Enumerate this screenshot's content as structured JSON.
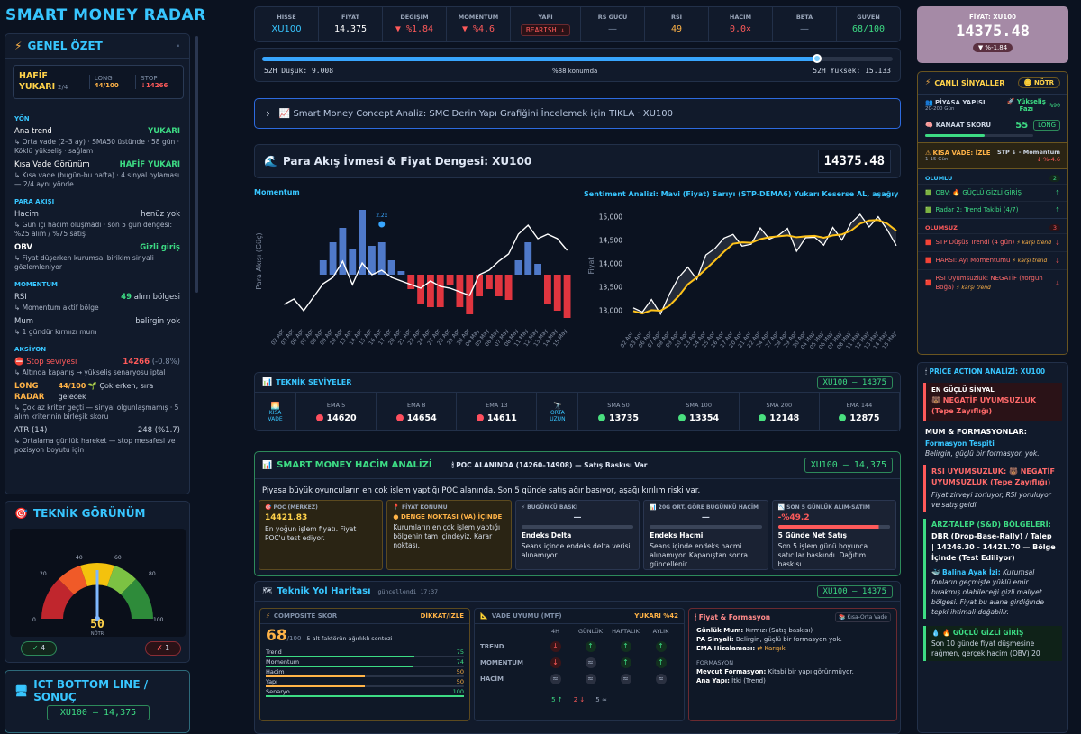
{
  "brand": "SMART MONEY RADAR",
  "summary": {
    "title": "GENEL ÖZET",
    "card": {
      "state": "HAFİF YUKARI",
      "count": "2/4",
      "long_label": "LONG",
      "long_val": "44/100",
      "stop_label": "STOP",
      "stop_val": "↓14266"
    },
    "yon_label": "YÖN",
    "ana_trend_label": "Ana trend",
    "ana_trend_val": "YUKARI",
    "ana_trend_sub": "↳ Orta vade (2–3 ay) · SMA50 üstünde · 58 gün · Köklü yükseliş · sağlam",
    "kisa_label": "Kısa Vade Görünüm",
    "kisa_val": "HAFİF YUKARI",
    "kisa_sub": "↳ Kısa vade (bugün-bu hafta) · 4 sinyal oylaması — 2/4 aynı yönde",
    "para_label": "PARA AKIŞI",
    "hacim_label": "Hacim",
    "hacim_val": "henüz yok",
    "hacim_sub": "↳ Gün içi hacim oluşmadı · son 5 gün dengesi: %25 alım / %75 satış",
    "obv_label": "OBV",
    "obv_val": "Gizli giriş",
    "obv_sub": "↳ Fiyat düşerken kurumsal birikim sinyali gözlemleniyor",
    "mom_label": "MOMENTUM",
    "rsi_label": "RSI",
    "rsi_val": "49",
    "rsi_val2": "alım bölgesi",
    "rsi_sub": "↳ Momentum aktif bölge",
    "mum_label": "Mum",
    "mum_val": "belirgin yok",
    "mum_sub": "↳ 1 gündür kırmızı mum",
    "aksiyon_label": "AKSİYON",
    "stop_label": "⛔ Stop seviyesi",
    "stop_val": "14266",
    "stop_pct": "(-0.8%)",
    "stop_sub": "↳ Altında kapanış → yükseliş senaryosu iptal",
    "long_radar_label": "LONG RADAR",
    "long_radar_val": "44/100",
    "long_radar_note": "🌱 Çok erken, sıra gelecek",
    "long_radar_sub": "↳ Çok az kriter geçti — sinyal olgunlaşmamış · 5 alım kriterinin birleşik skoru",
    "atr_label": "ATR (14)",
    "atr_val": "248 (%1.7)",
    "atr_sub": "↳ Ortalama günlük hareket — stop mesafesi ve pozisyon boyutu için"
  },
  "teknik": {
    "title": "TEKNİK GÖRÜNÜM",
    "ticks": [
      "0",
      "20",
      "40",
      "60",
      "80",
      "100"
    ],
    "value": "50",
    "state": "NÖTR",
    "up_count": "4",
    "down_count": "1",
    "gauge_level": 50
  },
  "ict": {
    "title": "ICT BOTTOM LINE / SONUÇ",
    "pill": "XU100 — 14,375"
  },
  "top_table": {
    "headers": [
      "HİSSE",
      "FİYAT",
      "DEĞİŞİM",
      "MOMENTUM",
      "YAPI",
      "RS GÜCÜ",
      "RSI",
      "HACİM",
      "BETA",
      "GÜVEN"
    ],
    "values": [
      "XU100",
      "14.375",
      "▼ %1.84",
      "▼ %4.6",
      "BEARISH ↓",
      "—",
      "49",
      "0.0×",
      "—",
      "68/100"
    ]
  },
  "range": {
    "low": "52H Düşük: 9.008",
    "mid": "%88 konumda",
    "high": "52H Yüksek: 15.133",
    "position": 0.88
  },
  "smc_bar": {
    "chevron": "›",
    "text": "📈 Smart Money Concept Analiz: SMC Derin Yapı Grafiğini İncelemek için TIKLA · XU100"
  },
  "flow": {
    "title": "Para Akış İvmesi & Fiyat Dengesi: XU100",
    "price": "14375.48",
    "left_label": "Momentum",
    "left_ylabel": "Para Akışı (Güç)",
    "marker": "2.2x",
    "right_label": "Sentiment Analizi: Mavi (Fiyat) Sarıyı (STP-DEMA6) Yukarı Keserse AL, aşağıya …",
    "right_ylabel": "Fiyat"
  },
  "chart_data": [
    {
      "type": "bar",
      "title": "Momentum",
      "ylabel": "Para Akışı (Güç)",
      "categories": [
        "02 Apr",
        "03 Apr",
        "06 Apr",
        "07 Apr",
        "08 Apr",
        "09 Apr",
        "10 Apr",
        "13 Apr",
        "14 Apr",
        "15 Apr",
        "16 Apr",
        "17 Apr",
        "20 Apr",
        "21 Apr",
        "22 Apr",
        "24 Apr",
        "27 Apr",
        "28 Apr",
        "29 Apr",
        "30 Apr",
        "04 May",
        "05 May",
        "06 May",
        "07 May",
        "08 May",
        "11 May",
        "12 May",
        "13 May",
        "14 May",
        "15 May"
      ],
      "values": [
        0,
        0,
        0,
        0,
        0.4,
        0.9,
        1.3,
        0.7,
        1.8,
        0.8,
        0.9,
        0.4,
        0.1,
        -0.4,
        -0.8,
        -0.9,
        -0.9,
        -0.3,
        -0.9,
        -1.1,
        -0.6,
        -0.4,
        -0.6,
        -0.7,
        0.4,
        0.9,
        0.3,
        -0.8,
        -1.0,
        -1.2
      ]
    },
    {
      "type": "line",
      "title": "Sentiment Analizi",
      "ylabel": "Fiyat",
      "ylim": [
        12700,
        15300
      ],
      "yticks": [
        13000,
        13500,
        14000,
        14500,
        15000
      ],
      "categories": [
        "02 Apr",
        "03 Apr",
        "06 Apr",
        "07 Apr",
        "08 Apr",
        "09 Apr",
        "10 Apr",
        "13 Apr",
        "14 Apr",
        "15 Apr",
        "16 Apr",
        "17 Apr",
        "20 Apr",
        "21 Apr",
        "22 Apr",
        "24 Apr",
        "27 Apr",
        "28 Apr",
        "29 Apr",
        "30 Apr",
        "04 May",
        "05 May",
        "06 May",
        "07 May",
        "08 May",
        "11 May",
        "12 May",
        "13 May",
        "14 May",
        "15 May"
      ],
      "series": [
        {
          "name": "Fiyat",
          "color": "#ffffff",
          "values": [
            13050,
            12960,
            13230,
            12920,
            13350,
            13700,
            13920,
            13660,
            14180,
            14320,
            14540,
            14620,
            14370,
            14410,
            14760,
            14520,
            14600,
            14750,
            14260,
            14550,
            14560,
            14390,
            14770,
            14500,
            14860,
            15050,
            14780,
            15000,
            14720,
            14380
          ]
        },
        {
          "name": "STP-DEMA6",
          "color": "#ffc31a",
          "values": [
            12980,
            12930,
            13000,
            12990,
            13100,
            13300,
            13550,
            13700,
            13880,
            14060,
            14250,
            14420,
            14450,
            14440,
            14520,
            14560,
            14580,
            14600,
            14560,
            14580,
            14590,
            14550,
            14600,
            14620,
            14700,
            14850,
            14920,
            14930,
            14850,
            14700
          ]
        }
      ]
    }
  ],
  "levels": {
    "title": "TEKNİK SEVİYELER",
    "pill": "XU100 — 14375",
    "kisa": "KISA VADE",
    "orta": "ORTA UZUN",
    "emas": [
      {
        "label": "EMA 5",
        "val": "14620",
        "color": "#ff4f5e"
      },
      {
        "label": "EMA 8",
        "val": "14654",
        "color": "#ff4f5e"
      },
      {
        "label": "EMA 13",
        "val": "14611",
        "color": "#ff4f5e"
      }
    ],
    "smas": [
      {
        "label": "SMA 50",
        "val": "13735",
        "color": "#49e07f"
      },
      {
        "label": "SMA 100",
        "val": "13354",
        "color": "#49e07f"
      },
      {
        "label": "SMA 200",
        "val": "12148",
        "color": "#49e07f"
      },
      {
        "label": "EMA 144",
        "val": "12875",
        "color": "#49e07f"
      }
    ]
  },
  "volume": {
    "title": "SMART MONEY HACİM ANALİZİ",
    "poc_note": "🕯 POC ALANINDA (14260–14908) — Satış Baskısı Var",
    "pill": "XU100 — 14,375",
    "desc": "Piyasa büyük oyuncuların en çok işlem yaptığı POC alanında. Son 5 günde satış ağır basıyor, aşağı kırılım riski var.",
    "cards": [
      {
        "head": "🎯 POC (MERKEZ)",
        "val": "14421.83",
        "body": "En yoğun işlem fiyatı. Fiyat POC'u test ediyor."
      },
      {
        "head": "📍 FİYAT KONUMU",
        "val": "● DENGE NOKTASI (VA) İÇİNDE",
        "body": "Kurumların en çok işlem yaptığı bölgenin tam içindeyiz. Karar noktası."
      },
      {
        "head": "⚡ BUGÜNKÜ BASKI",
        "val": "—",
        "strong": "Endeks Delta",
        "body": "Seans içinde endeks delta verisi alınamıyor."
      },
      {
        "head": "📊 20G ORT. GÖRE BUGÜNKÜ HACİM",
        "val": "—",
        "strong": "Endeks Hacmi",
        "body": "Seans içinde endeks hacmi alınamıyor. Kapanıştan sonra güncellenir."
      },
      {
        "head": "📉 SON 5 GÜNLÜK ALIM-SATIM",
        "val": "-%49.2",
        "strong": "5 Günde Net Satış",
        "body": "Son 5 işlem günü boyunca satıcılar baskındı. Dağıtım baskısı."
      }
    ]
  },
  "roadmap": {
    "title": "Teknik Yol Haritası",
    "updated": "güncellendi 17:37",
    "pill": "XU100 — 14375",
    "composite": {
      "title": "COMPOSITE SKOR",
      "state": "DİKKAT/İZLE",
      "score": "68",
      "of": "/100",
      "desc": "5 alt faktörün ağırlıklı sentezi",
      "rows": [
        {
          "label": "Trend",
          "val": "75",
          "pct": 75,
          "color": "#3ddc84"
        },
        {
          "label": "Momentum",
          "val": "74",
          "pct": 74,
          "color": "#3ddc84"
        },
        {
          "label": "Hacim",
          "val": "50",
          "pct": 50,
          "color": "#ffb347"
        },
        {
          "label": "Yapı",
          "val": "50",
          "pct": 50,
          "color": "#ffb347"
        },
        {
          "label": "Senaryo",
          "val": "100",
          "pct": 100,
          "color": "#3ddc84"
        }
      ]
    },
    "mtf": {
      "title": "VADE UYUMU (MTF)",
      "state": "YUKARI %42",
      "cols": [
        "4H",
        "GÜNLÜK",
        "HAFTALIK",
        "AYLIK"
      ],
      "rows": [
        {
          "label": "TREND",
          "cells": [
            "down",
            "up",
            "up",
            "up"
          ]
        },
        {
          "label": "MOMENTUM",
          "cells": [
            "down",
            "flat",
            "up",
            "up"
          ]
        },
        {
          "label": "HACİM",
          "cells": [
            "flat",
            "flat",
            "flat",
            "flat"
          ]
        }
      ],
      "footer": [
        "5 ↑",
        "2 ↓",
        "5 ≈"
      ]
    },
    "formation": {
      "title": "🕯 Fiyat & Formasyon",
      "tag": "📚 Kısa-Orta Vade",
      "lines": [
        {
          "k": "Günlük Mum:",
          "v": "Kırmızı (Satış baskısı)"
        },
        {
          "k": "PA Sinyali:",
          "v": "Belirgin, güçlü bir formasyon yok."
        },
        {
          "k": "EMA Hizalaması:",
          "v": "⇄ Karışık"
        }
      ],
      "sub": "FORMASYON",
      "lines2": [
        {
          "k": "Mevcut Formasyon:",
          "v": "Kitabi bir yapı görünmüyor."
        },
        {
          "k": "Ana Yapı:",
          "v": "İtki (Trend)"
        }
      ]
    }
  },
  "right": {
    "price_label": "FİYAT: XU100",
    "price": "14375.48",
    "price_chg": "▼ %-1.84",
    "live_title": "CANLI SİNYALLER",
    "live_badge": "NÖTR",
    "piyasa_label": "PİYASA YAPISI",
    "piyasa_sub": "20-200 Gün",
    "piyasa_val": "🚀 Yükseliş Fazı",
    "piyasa_pct": "%90",
    "kanaat_label": "KANAAT SKORU",
    "kanaat_val": "55",
    "kanaat_badge": "LONG",
    "kanaat_level": 55,
    "kisa_label": "KISA VADE: İZLE",
    "kisa_sub": "1-15 Gün",
    "kisa_val": "STP ↓ - Momentum",
    "kisa_pct": "↓ %-4.6",
    "olumlu_label": "OLUMLU",
    "olumlu_count": "2",
    "olumlu": [
      {
        "text": "OBV: 🔥 GÜÇLÜ GİZLİ GİRİŞ",
        "arrow": "↑"
      },
      {
        "text": "Radar 2: Trend Takibi (4/7)",
        "arrow": "↑"
      }
    ],
    "olumsuz_label": "OLUMSUZ",
    "olumsuz_count": "3",
    "olumsuz": [
      {
        "text": "STP Düşüş Trendi (4 gün)",
        "note": "⚡ karşı trend",
        "arrow": "↓"
      },
      {
        "text": "HARSI: Ayı Momentumu",
        "note": "⚡ karşı trend",
        "arrow": "↓"
      },
      {
        "text": "RSI Uyumsuzluk: NEGATİF (Yorgun Boğa)",
        "note": "⚡ karşı trend",
        "arrow": "↓"
      }
    ],
    "pa_title": "PRICE ACTION ANALİZİ: XU100",
    "strong_label": "EN GÜÇLÜ SİNYAL",
    "strong_val": "🐻 NEGATİF UYUMSUZLUK (Tepe Zayıflığı)",
    "mum_title": "MUM & FORMASYONLAR:",
    "mum_sub": "Formasyon Tespiti",
    "mum_text": "Belirgin, güçlü bir formasyon yok.",
    "rsi_title": "RSI UYUMSUZLUK: 🐻 NEGATİF UYUMSUZLUK (Tepe Zayıflığı)",
    "rsi_text": "Fiyat zirveyi zorluyor, RSI yoruluyor ve satış geldi.",
    "sd_title": "ARZ-TALEP (S&D) BÖLGELERİ:",
    "sd_text": "DBR (Drop-Base-Rally) / Talep | 14246.30 - 14421.70 — Bölge İçinde (Test Ediliyor)",
    "balina_label": "🐳 Balina Ayak İzi:",
    "balina_text": "Kurumsal fonların geçmişte yüklü emir bırakmış olabileceği gizli maliyet bölgesi. Fiyat bu alana girdiğinde tepki ihtimali doğabilir.",
    "gizli_label": "💧 🔥 GÜÇLÜ GİZLİ GİRİŞ",
    "gizli_text": "Son 10 günde fiyat düşmesine rağmen, gerçek hacim (OBV) 20"
  }
}
